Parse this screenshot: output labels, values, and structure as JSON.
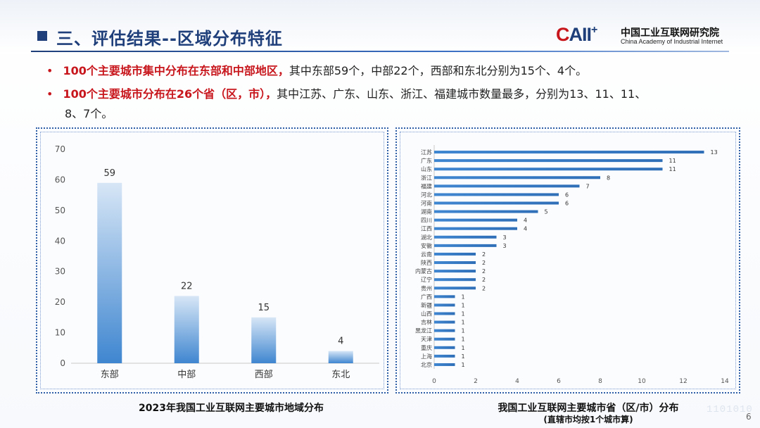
{
  "header": {
    "title": "三、评估结果--区域分布特征",
    "logo": {
      "mark_c": "C",
      "mark_rest": "AII",
      "mark_plus": "+",
      "name_cn": "中国工业互联网研究院",
      "name_en": "China Academy of Industrial Internet"
    }
  },
  "bullets": [
    {
      "dot": "•",
      "highlight": "100个主要城市集中分布在东部和中部地区，",
      "text": "其中东部59个，中部22个，西部和东北分别为15个、4个。"
    },
    {
      "dot": "•",
      "highlight": "100个主要城市分布在26个省（区，市），",
      "text": "其中江苏、广东、山东、浙江、福建城市数量最多，分别为13、11、11、",
      "text_cont": "8、7个。"
    }
  ],
  "colors": {
    "accent_red": "#c8161d",
    "brand_blue": "#1f3f7a",
    "bar_blue": "#3f86d0"
  },
  "chart_data": [
    {
      "type": "bar",
      "orientation": "vertical",
      "categories": [
        "东部",
        "中部",
        "西部",
        "东北"
      ],
      "values": [
        59,
        22,
        15,
        4
      ],
      "ylim": [
        0,
        70
      ],
      "yticks": [
        0,
        10,
        20,
        30,
        40,
        50,
        60,
        70
      ],
      "grid": false,
      "caption": "2023年我国工业互联网主要城市地域分布"
    },
    {
      "type": "bar",
      "orientation": "horizontal",
      "categories": [
        "江苏",
        "广东",
        "山东",
        "浙江",
        "福建",
        "河北",
        "河南",
        "湖南",
        "四川",
        "江西",
        "湖北",
        "安徽",
        "云南",
        "陕西",
        "内蒙古",
        "辽宁",
        "贵州",
        "广西",
        "新疆",
        "山西",
        "吉林",
        "黑龙江",
        "天津",
        "重庆",
        "上海",
        "北京"
      ],
      "values": [
        13,
        11,
        11,
        8,
        7,
        6,
        6,
        5,
        4,
        4,
        3,
        3,
        2,
        2,
        2,
        2,
        2,
        1,
        1,
        1,
        1,
        1,
        1,
        1,
        1,
        1
      ],
      "xlim": [
        0,
        14
      ],
      "xticks": [
        0,
        2,
        4,
        6,
        8,
        10,
        12,
        14
      ],
      "grid": false,
      "caption": "我国工业互联网主要城市省（区/市）分布",
      "subcaption": "(直辖市均按1个城市算)"
    }
  ],
  "footer": {
    "page_number": "6",
    "watermark": "1101010"
  }
}
